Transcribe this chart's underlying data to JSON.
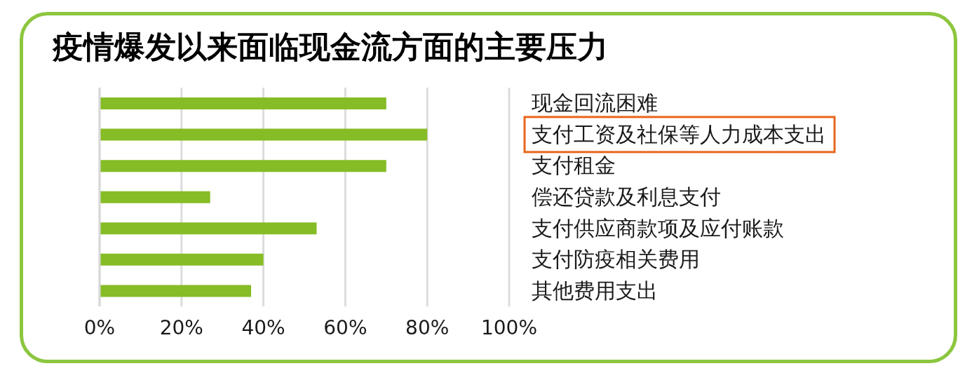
{
  "chart_data": {
    "type": "bar",
    "orientation": "horizontal",
    "title": "疫情爆发以来面临现金流方面的主要压力",
    "categories": [
      "现金回流困难",
      "支付工资及社保等人力成本支出",
      "支付租金",
      "偿还贷款及利息支付",
      "支付供应商款项及应付账款",
      "支付防疫相关费用",
      "其他费用支出"
    ],
    "values": [
      70,
      80,
      70,
      27,
      53,
      40,
      37
    ],
    "color": "#86bc25",
    "xlim": [
      0,
      100
    ],
    "xticks": [
      {
        "value": 0,
        "label": "0%"
      },
      {
        "value": 20,
        "label": "20%"
      },
      {
        "value": 40,
        "label": "40%"
      },
      {
        "value": 60,
        "label": "60%"
      },
      {
        "value": 80,
        "label": "80%"
      },
      {
        "value": 100,
        "label": "100%"
      }
    ],
    "grid": "x"
  }
}
